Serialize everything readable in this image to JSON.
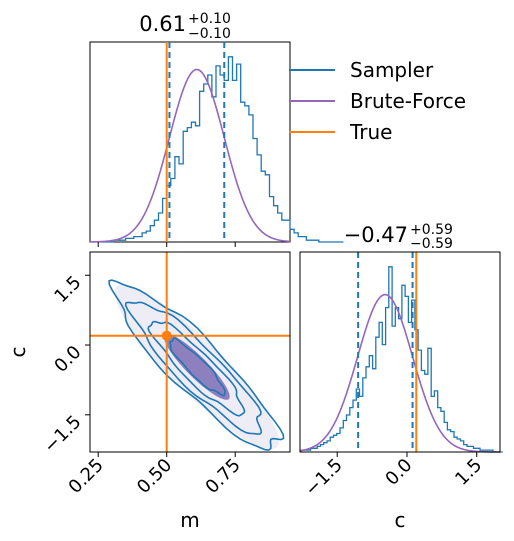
{
  "colors": {
    "sampler": "#1f77b4",
    "brute_force": "#9467bd",
    "true": "#ff7f0e",
    "bf_fill": "#8e7fbf",
    "bf_outer_fill": "#eeedf6"
  },
  "chart_data": {
    "type": "corner",
    "parameters": [
      "m",
      "c"
    ],
    "true_values": {
      "m": 0.5,
      "c": 0.2
    },
    "legend": {
      "placement": "top-right",
      "entries": [
        {
          "label": "Sampler",
          "color": "#1f77b4"
        },
        {
          "label": "Brute-Force",
          "color": "#9467bd"
        },
        {
          "label": "True",
          "color": "#ff7f0e"
        }
      ]
    },
    "m_panel": {
      "title": {
        "value": "0.61",
        "plus": "+0.10",
        "minus": "−0.10"
      },
      "xlim": [
        0.22,
        0.95
      ],
      "quantiles": [
        0.51,
        0.71
      ],
      "true": 0.5,
      "hist_edges_start": 0.26,
      "hist_bin_width": 0.015,
      "hist_counts": [
        0,
        0,
        0,
        1,
        1,
        1,
        2,
        2,
        3,
        3,
        5,
        6,
        9,
        12,
        16,
        24,
        31,
        35,
        47,
        43,
        61,
        63,
        66,
        64,
        83,
        87,
        92,
        80,
        97,
        92,
        89,
        102,
        89,
        98,
        77,
        75,
        70,
        57,
        48,
        39,
        37,
        25,
        20,
        16,
        12,
        12,
        7,
        5,
        3,
        3,
        1,
        1,
        1,
        0,
        0,
        0,
        0,
        0,
        0
      ],
      "bf_mean": 0.61,
      "bf_sigma": 0.1,
      "bf_peak": 95
    },
    "c_panel": {
      "title": {
        "value": "−0.47",
        "plus": "+0.59",
        "minus": "−0.59"
      },
      "xlim": [
        -2.3,
        2.0
      ],
      "quantiles": [
        -1.05,
        0.12
      ],
      "true": 0.2,
      "hist_edges_start": -2.28,
      "hist_bin_width": 0.07,
      "hist_counts": [
        1,
        1,
        1,
        2,
        2,
        3,
        4,
        5,
        6,
        8,
        9,
        10,
        13,
        17,
        20,
        24,
        28,
        34,
        30,
        40,
        46,
        52,
        45,
        62,
        70,
        58,
        78,
        100,
        68,
        78,
        72,
        90,
        84,
        70,
        82,
        66,
        55,
        44,
        42,
        56,
        30,
        33,
        24,
        22,
        16,
        12,
        11,
        8,
        7,
        6,
        4,
        3,
        3,
        2,
        2,
        1,
        1,
        1,
        1,
        0,
        0,
        0
      ],
      "bf_mean": -0.47,
      "bf_sigma": 0.59,
      "bf_peak": 85
    },
    "joint_panel": {
      "xlim": [
        0.22,
        0.95
      ],
      "ylim": [
        -2.3,
        2.0
      ],
      "x_ticks": [
        0.25,
        0.5,
        0.75
      ],
      "y_ticks": [
        -1.5,
        0.0,
        1.5
      ],
      "mean": [
        0.61,
        -0.47
      ],
      "corr": -0.9,
      "sampler_levels": [
        1.0,
        1.7,
        2.4,
        3.0
      ],
      "brute_force_levels": [
        1.2,
        3.0
      ]
    },
    "c_ticks": [
      -1.5,
      0.0,
      1.5
    ],
    "tick_labels": {
      "m": [
        "0.25",
        "0.50",
        "0.75"
      ],
      "c": [
        "−1.5",
        "0.0",
        "1.5"
      ]
    },
    "xlabel_joint": "m",
    "ylabel_joint": "c",
    "xlabel_c": "c"
  }
}
